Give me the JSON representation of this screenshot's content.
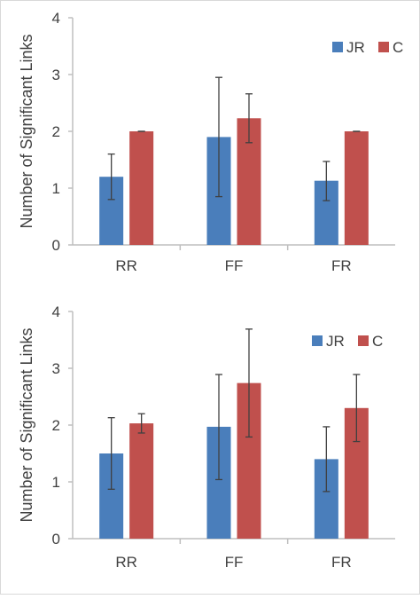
{
  "colors": {
    "JR": "#4a7ebb",
    "C": "#c0504d",
    "axis": "#bfbfbf",
    "error": "#404040",
    "text": "#404040"
  },
  "chart_data": [
    {
      "type": "bar",
      "ylabel": "Number of Significant Links",
      "xlabel": "",
      "ylim": [
        0,
        4
      ],
      "yticks": [
        "0",
        "1",
        "2",
        "3",
        "4"
      ],
      "categories": [
        "RR",
        "FF",
        "FR"
      ],
      "legend": {
        "position": "top-right",
        "entries": [
          "JR",
          "C"
        ]
      },
      "grid": false,
      "series": [
        {
          "name": "JR",
          "values": [
            1.2,
            1.9,
            1.13
          ],
          "error_low": [
            0.8,
            0.85,
            0.78
          ],
          "error_high": [
            1.6,
            2.95,
            1.47
          ]
        },
        {
          "name": "C",
          "values": [
            2.0,
            2.23,
            2.0
          ],
          "error_low": [
            2.0,
            1.8,
            2.0
          ],
          "error_high": [
            2.0,
            2.66,
            2.0
          ]
        }
      ]
    },
    {
      "type": "bar",
      "ylabel": "Number of Significant Links",
      "xlabel": "",
      "ylim": [
        0,
        4
      ],
      "yticks": [
        "0",
        "1",
        "2",
        "3",
        "4"
      ],
      "categories": [
        "RR",
        "FF",
        "FR"
      ],
      "legend": {
        "position": "top-right",
        "entries": [
          "JR",
          "C"
        ]
      },
      "grid": false,
      "series": [
        {
          "name": "JR",
          "values": [
            1.5,
            1.97,
            1.4
          ],
          "error_low": [
            0.87,
            1.04,
            0.83
          ],
          "error_high": [
            2.13,
            2.89,
            1.97
          ]
        },
        {
          "name": "C",
          "values": [
            2.03,
            2.74,
            2.3
          ],
          "error_low": [
            1.86,
            1.79,
            1.71
          ],
          "error_high": [
            2.2,
            3.69,
            2.89
          ]
        }
      ]
    }
  ]
}
